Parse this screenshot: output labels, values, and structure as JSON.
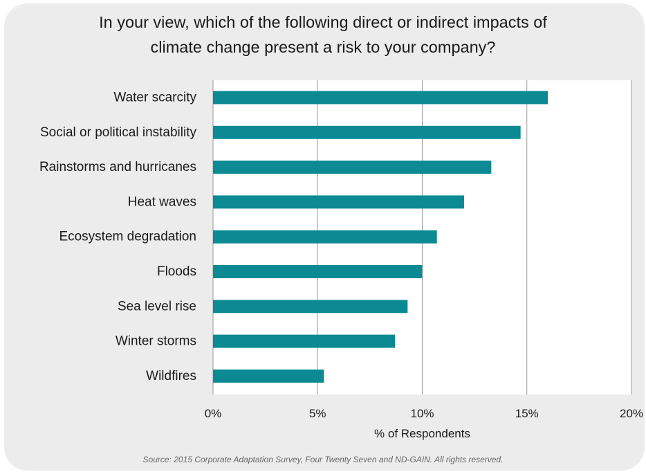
{
  "source": "Source: 2015 Corporate Adaptation Survey, Four Twenty Seven and ND-GAIN. All rights reserved.",
  "chart_data": {
    "type": "bar",
    "orientation": "horizontal",
    "title_lines": [
      "In your view, which of the following direct or indirect impacts of",
      "climate change present a risk to your company?"
    ],
    "categories": [
      "Water scarcity",
      "Social or political instability",
      "Rainstorms and hurricanes",
      "Heat waves",
      "Ecosystem degradation",
      "Floods",
      "Sea level rise",
      "Winter storms",
      "Wildfires"
    ],
    "values": [
      16.0,
      14.7,
      13.3,
      12.0,
      10.7,
      10.0,
      9.3,
      8.7,
      5.3
    ],
    "xlabel": "% of Respondents",
    "ylabel": "",
    "xlim": [
      0,
      20
    ],
    "xticks": [
      0,
      5,
      10,
      15,
      20
    ],
    "xtick_labels": [
      "0%",
      "5%",
      "10%",
      "15%",
      "20%"
    ],
    "grid": "vertical",
    "bar_color": "#0b8a94",
    "plot_background": "#ffffff",
    "card_background": "#ececec"
  }
}
